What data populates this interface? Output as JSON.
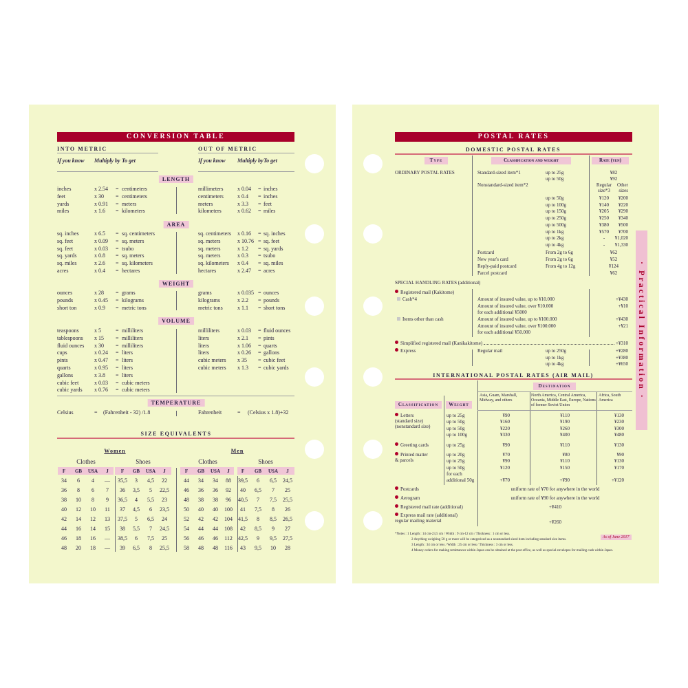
{
  "conversion": {
    "title": "CONVERSION TABLE",
    "into_metric": "INTO METRIC",
    "out_of_metric": "OUT OF METRIC",
    "col_headers": [
      "If you know",
      "Multiply by",
      "To get"
    ],
    "sections": [
      {
        "label": "LENGTH",
        "rows": [
          [
            "inches",
            "x 2.54",
            "=",
            "centimeters",
            "millimeters",
            "x 0.04",
            "=",
            "inches"
          ],
          [
            "feet",
            "x 30",
            "=",
            "centimeters",
            "centimeters",
            "x 0.4",
            "=",
            "inches"
          ],
          [
            "yards",
            "x 0.91",
            "=",
            "meters",
            "meters",
            "x 3.3",
            "=",
            "feet"
          ],
          [
            "miles",
            "x 1.6",
            "=",
            "kilometers",
            "kilometers",
            "x 0.62",
            "=",
            "miles"
          ]
        ]
      },
      {
        "label": "AREA",
        "rows": [
          [
            "sq. inches",
            "x 6.5",
            "=",
            "sq. centimeters",
            "sq. centimeters",
            "x 0.16",
            "=",
            "sq. inches"
          ],
          [
            "sq. feet",
            "x 0.09",
            "=",
            "sq. meters",
            "sq. meters",
            "x 10.76",
            "=",
            "sq. feet"
          ],
          [
            "sq. feet",
            "x 0.03",
            "=",
            "tsubo",
            "sq. meters",
            "x 1.2",
            "=",
            "sq. yards"
          ],
          [
            "sq. yards",
            "x 0.8",
            "=",
            "sq. meters",
            "sq. meters",
            "x 0.3",
            "=",
            "tsubo"
          ],
          [
            "sq. miles",
            "x 2.6",
            "=",
            "sq. kilometers",
            "sq. kilometers",
            "x 0.4",
            "=",
            "sq. miles"
          ],
          [
            "acres",
            "x 0.4",
            "=",
            "hectares",
            "hectares",
            "x 2.47",
            "=",
            "acres"
          ]
        ]
      },
      {
        "label": "WEIGHT",
        "rows": [
          [
            "ounces",
            "x 28",
            "=",
            "grams",
            "grams",
            "x 0.035",
            "=",
            "ounces"
          ],
          [
            "pounds",
            "x 0.45",
            "=",
            "kilograms",
            "kilograms",
            "x 2.2",
            "=",
            "pounds"
          ],
          [
            "short ton",
            "x 0.9",
            "=",
            "metric tons",
            "metric tons",
            "x 1.1",
            "=",
            "short tons"
          ]
        ]
      },
      {
        "label": "VOLUME",
        "rows": [
          [
            "teaspoons",
            "x 5",
            "=",
            "milliliters",
            "milliliters",
            "x 0.03",
            "=",
            "fluid ounces"
          ],
          [
            "tablespoons",
            "x 15",
            "=",
            "milliliters",
            "liters",
            "x 2.1",
            "=",
            "pints"
          ],
          [
            "fluid ounces",
            "x 30",
            "=",
            "milliliters",
            "liters",
            "x 1.06",
            "=",
            "quarts"
          ],
          [
            "cups",
            "x 0.24",
            "=",
            "liters",
            "liters",
            "x 0.26",
            "=",
            "gallons"
          ],
          [
            "pints",
            "x 0.47",
            "=",
            "liters",
            "cubic meters",
            "x 35",
            "=",
            "cubic feet"
          ],
          [
            "quarts",
            "x 0.95",
            "=",
            "liters",
            "cubic meters",
            "x 1.3",
            "=",
            "cubic yards"
          ],
          [
            "gallons",
            "x 3.8",
            "=",
            "liters",
            "",
            "",
            "",
            ""
          ],
          [
            "cubic feet",
            "x 0.03",
            "=",
            "cubic meters",
            "",
            "",
            "",
            ""
          ],
          [
            "cubic yards",
            "x 0.76",
            "=",
            "cubic meters",
            "",
            "",
            "",
            ""
          ]
        ]
      }
    ],
    "temperature": {
      "label": "TEMPERATURE",
      "row": [
        "Celsius",
        "=",
        "(Fahrenheit - 32) /1.8",
        "Fahrenheit",
        "=",
        "(Celsius x 1.8)+32"
      ]
    }
  },
  "sizes": {
    "title": "SIZE EQUIVALENTS",
    "women": "Women",
    "men": "Men",
    "clothes": "Clothes",
    "shoes": "Shoes",
    "headers": [
      "F",
      "GB",
      "USA",
      "J",
      "F",
      "GB",
      "USA",
      "J",
      "F",
      "GB",
      "USA",
      "J",
      "F",
      "GB",
      "USA",
      "J"
    ],
    "rows": [
      [
        "34",
        "6",
        "4",
        "—",
        "35,5",
        "3",
        "4,5",
        "22",
        "44",
        "34",
        "34",
        "88",
        "39,5",
        "6",
        "6,5",
        "24,5"
      ],
      [
        "36",
        "8",
        "6",
        "7",
        "36",
        "3,5",
        "5",
        "22,5",
        "46",
        "36",
        "36",
        "92",
        "40",
        "6,5",
        "7",
        "25"
      ],
      [
        "38",
        "10",
        "8",
        "9",
        "36,5",
        "4",
        "5,5",
        "23",
        "48",
        "38",
        "38",
        "96",
        "40,5",
        "7",
        "7,5",
        "25,5"
      ],
      [
        "40",
        "12",
        "10",
        "11",
        "37",
        "4,5",
        "6",
        "23,5",
        "50",
        "40",
        "40",
        "100",
        "41",
        "7,5",
        "8",
        "26"
      ],
      [
        "42",
        "14",
        "12",
        "13",
        "37,5",
        "5",
        "6,5",
        "24",
        "52",
        "42",
        "42",
        "104",
        "41,5",
        "8",
        "8,5",
        "26,5"
      ],
      [
        "44",
        "16",
        "14",
        "15",
        "38",
        "5,5",
        "7",
        "24,5",
        "54",
        "44",
        "44",
        "108",
        "42",
        "8,5",
        "9",
        "27"
      ],
      [
        "46",
        "18",
        "16",
        "—",
        "38,5",
        "6",
        "7,5",
        "25",
        "56",
        "46",
        "46",
        "112",
        "42,5",
        "9",
        "9,5",
        "27,5"
      ],
      [
        "48",
        "20",
        "18",
        "—",
        "39",
        "6,5",
        "8",
        "25,5",
        "58",
        "48",
        "48",
        "116",
        "43",
        "9,5",
        "10",
        "28"
      ]
    ]
  },
  "postal": {
    "title": "POSTAL RATES",
    "domestic": {
      "title": "DOMESTIC POSTAL RATES",
      "headers": {
        "type": "Type",
        "classification": "Classification and weight",
        "rate": "Rate (yen)"
      },
      "ordinary_label": "ORDINARY POSTAL RATES",
      "rows": [
        {
          "c": "Standard-sized item*1",
          "w": "up to 25g",
          "r": "¥82"
        },
        {
          "c": "",
          "w": "up to 50g",
          "r": "¥92"
        },
        {
          "c": "Nonstandard-sized item*2",
          "w": "",
          "r": "Regular size*3",
          "r2": "Other sizes"
        },
        {
          "c": "",
          "w": "up to 50g",
          "r": "¥120",
          "r2": "¥200"
        },
        {
          "c": "",
          "w": "up to 100g",
          "r": "¥140",
          "r2": "¥220"
        },
        {
          "c": "",
          "w": "up to 150g",
          "r": "¥205",
          "r2": "¥290"
        },
        {
          "c": "",
          "w": "up to 250g",
          "r": "¥250",
          "r2": "¥340"
        },
        {
          "c": "",
          "w": "up to 500g",
          "r": "¥380",
          "r2": "¥500"
        },
        {
          "c": "",
          "w": "up to 1kg",
          "r": "¥570",
          "r2": "¥700"
        },
        {
          "c": "",
          "w": "up to 2kg",
          "r": "-",
          "r2": "¥1,020"
        },
        {
          "c": "",
          "w": "up to 4kg",
          "r": "-",
          "r2": "¥1,330"
        },
        {
          "c": "Postcard",
          "w": "From 2g to 6g",
          "r": "¥62"
        },
        {
          "c": "New year's card",
          "w": "From 2g to 6g",
          "r": "¥52"
        },
        {
          "c": "Reply-paid postcard",
          "w": "From 4g to 12g",
          "r": "¥124"
        },
        {
          "c": "Parcel postcard",
          "w": "",
          "r": "¥62"
        }
      ],
      "special_label": "SPECIAL HANDLING RATES (additional)",
      "registered": "Registered mail (Kakitome)",
      "cash": "Cash*4",
      "cash_rows": [
        [
          "Amount of insured value, up to ¥10.000",
          "+¥430"
        ],
        [
          "Amount of insured value, over ¥10.000",
          "+¥10"
        ],
        [
          "for each additional ¥5000",
          ""
        ]
      ],
      "other": "Items other than cash",
      "other_rows": [
        [
          "Amount of insured value, up to ¥100.000",
          "+¥430"
        ],
        [
          "Amount of insured value, over ¥100.000",
          "+¥21"
        ],
        [
          "for each additional ¥50.000",
          ""
        ]
      ],
      "simplified": "Simplified registered mail (Kanikakitome)",
      "simplified_rate": "+¥310",
      "express": "Express",
      "express_type": "Regular mail",
      "express_rows": [
        [
          "up to 250g",
          "+¥280"
        ],
        [
          "up to 1kg",
          "+¥380"
        ],
        [
          "up to 4kg",
          "+¥650"
        ]
      ]
    },
    "international": {
      "title": "INTERNATIONAL POSTAL RATES (AIR MAIL)",
      "destination": "Destination",
      "classification": "Classification",
      "weight": "Weight",
      "regions": [
        "Asia, Guam, Marshall, Midway, and others",
        "North America, Central America, Oceania, Middle East, Europe, Nations of former Soviet Union",
        "Africa, South America"
      ],
      "groups": [
        {
          "label": "Letters\n(standard size)\n(nonstandard size)",
          "rows": [
            [
              "up to 25g",
              "¥90",
              "¥110",
              "¥130"
            ],
            [
              "up to 50g",
              "¥160",
              "¥190",
              "¥230"
            ],
            [
              "up to 50g",
              "¥220",
              "¥260",
              "¥300"
            ],
            [
              "up to 100g",
              "¥330",
              "¥400",
              "¥480"
            ]
          ]
        },
        {
          "label": "Greeting cards",
          "rows": [
            [
              "up to 25g",
              "¥90",
              "¥110",
              "¥130"
            ]
          ]
        },
        {
          "label": "Printed matter\n& parcels",
          "rows": [
            [
              "up to 20g",
              "¥70",
              "¥80",
              "¥90"
            ],
            [
              "up to 25g",
              "¥90",
              "¥110",
              "¥130"
            ],
            [
              "up to 50g",
              "¥120",
              "¥150",
              "¥170"
            ],
            [
              "for each",
              "",
              "",
              ""
            ],
            [
              "additional 50g",
              "+¥70",
              "+¥90",
              "+¥120"
            ]
          ]
        }
      ],
      "flat": [
        {
          "label": "Postcards",
          "value": "uniform rate of ¥70 for anywhere in the world"
        },
        {
          "label": "Aerogram",
          "value": "uniform rate of ¥90 for anywhere in the world"
        },
        {
          "label": "Registered mail rate (additional)",
          "value": "+¥410"
        },
        {
          "label": "Express mail rate (additional)\nregular mailing material",
          "value": "+¥260"
        }
      ]
    },
    "notes": [
      "*Notes : 1 Length : 14 cm-23,5 cm / Width : 9 cm-12 cm / Thickness : 1 cm or less.",
      "2 Anything weighing 50 g or more will be categorized as a nonstandard sized item including standard size items.",
      "3 Length : 34 cm or less / Width : 25 cm or less / Thickness : 3 cm or less.",
      "4 Money orders for making remittances within Japan can be obtained at the post office, as well as special envelopes for mailing cash within Japan."
    ],
    "as_of": "As of June 2017"
  },
  "side_tab": "· Practical Information ·",
  "colors": {
    "page": "#f3f7cc",
    "accent": "#a8002a",
    "pink": "#f0c6d6"
  }
}
